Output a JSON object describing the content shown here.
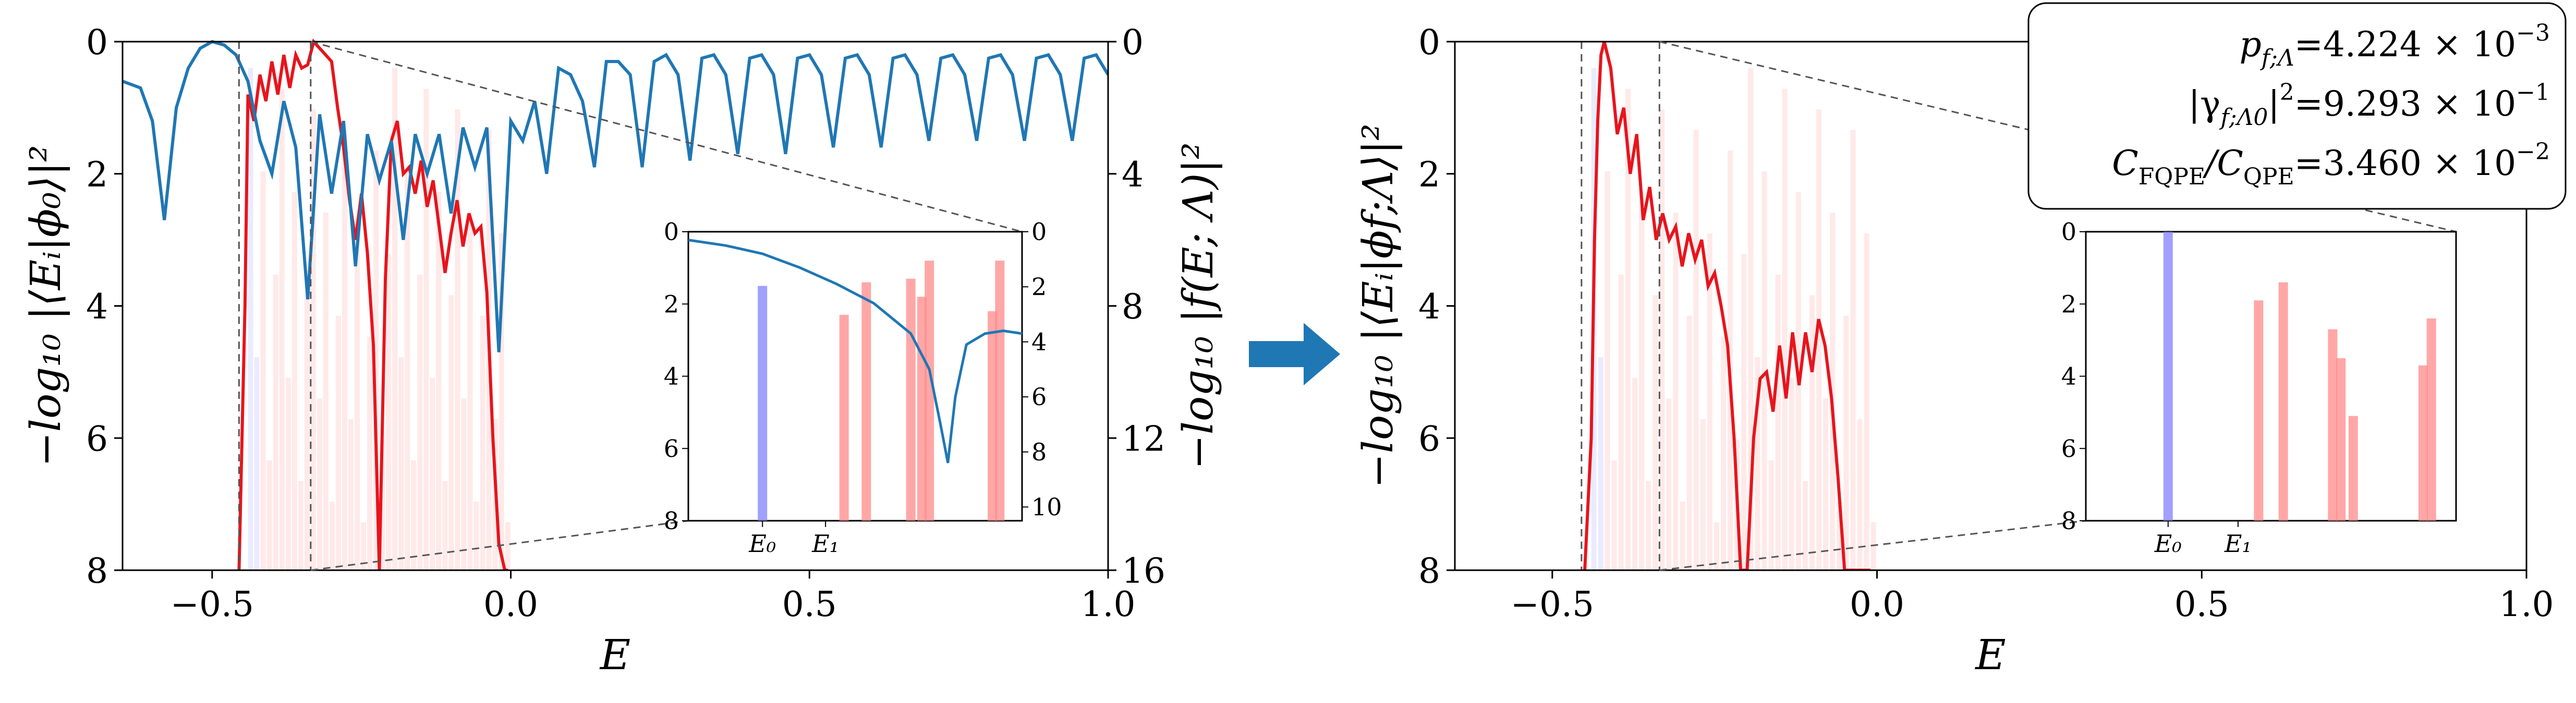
{
  "chart_data": [
    {
      "panel": "left",
      "type": "line",
      "xlabel": "E",
      "ylabel": "−log₁₀ |⟨Eᵢ|ϕ₀⟩|²",
      "ylabel_right": "−log₁₀ |f(E; Λ)|²",
      "xlim": [
        -0.65,
        1.0
      ],
      "ylim": [
        8,
        0
      ],
      "ylim_right": [
        16,
        0
      ],
      "xticks": [
        "−0.5",
        "0.0",
        "0.5",
        "1.0"
      ],
      "yticks": [
        "0",
        "2",
        "4",
        "6",
        "8"
      ],
      "yticks_right": [
        "0",
        "4",
        "8",
        "12",
        "16"
      ],
      "series": [
        {
          "color": "#e8141c",
          "axis": "left",
          "x": [
            -0.455,
            -0.445,
            -0.44,
            -0.43,
            -0.42,
            -0.41,
            -0.4,
            -0.39,
            -0.38,
            -0.37,
            -0.36,
            -0.35,
            -0.34,
            -0.33,
            -0.32,
            -0.31,
            -0.3,
            -0.29,
            -0.28,
            -0.27,
            -0.26,
            -0.25,
            -0.24,
            -0.23,
            -0.22,
            -0.21,
            -0.2,
            -0.19,
            -0.18,
            -0.17,
            -0.16,
            -0.15,
            -0.14,
            -0.13,
            -0.12,
            -0.11,
            -0.1,
            -0.09,
            -0.08,
            -0.07,
            -0.06,
            -0.05,
            -0.04,
            -0.03,
            -0.02,
            -0.01,
            -0.005
          ],
          "values": [
            8.0,
            4.0,
            0.8,
            1.2,
            0.5,
            0.9,
            0.3,
            0.8,
            0.2,
            0.7,
            0.2,
            0.4,
            0.35,
            0.0,
            0.1,
            0.2,
            0.3,
            1.0,
            1.6,
            2.4,
            3.0,
            2.3,
            3.2,
            4.6,
            8.0,
            3.6,
            1.5,
            1.2,
            2.0,
            1.9,
            2.3,
            1.8,
            2.5,
            2.1,
            2.8,
            3.5,
            2.9,
            2.4,
            3.1,
            2.6,
            2.9,
            2.8,
            3.8,
            6.0,
            7.6,
            8.0,
            8.0
          ]
        },
        {
          "color": "#1f77b4",
          "axis": "right",
          "x": [
            -0.65,
            -0.62,
            -0.6,
            -0.58,
            -0.56,
            -0.54,
            -0.52,
            -0.5,
            -0.48,
            -0.46,
            -0.44,
            -0.42,
            -0.4,
            -0.38,
            -0.36,
            -0.34,
            -0.32,
            -0.3,
            -0.28,
            -0.26,
            -0.24,
            -0.22,
            -0.2,
            -0.18,
            -0.16,
            -0.14,
            -0.12,
            -0.1,
            -0.08,
            -0.06,
            -0.04,
            -0.02,
            0.0,
            0.02,
            0.04,
            0.06,
            0.08,
            0.1,
            0.12,
            0.14,
            0.16,
            0.18,
            0.2,
            0.22,
            0.24,
            0.26,
            0.28,
            0.3,
            0.32,
            0.34,
            0.36,
            0.38,
            0.4,
            0.42,
            0.44,
            0.46,
            0.48,
            0.5,
            0.52,
            0.54,
            0.56,
            0.58,
            0.6,
            0.62,
            0.64,
            0.66,
            0.68,
            0.7,
            0.72,
            0.74,
            0.76,
            0.78,
            0.8,
            0.82,
            0.84,
            0.86,
            0.88,
            0.9,
            0.92,
            0.94,
            0.96,
            0.98,
            1.0
          ],
          "values": [
            1.2,
            1.4,
            2.4,
            5.4,
            2.0,
            0.8,
            0.2,
            0.0,
            0.1,
            0.4,
            1.2,
            3.0,
            4.0,
            1.8,
            3.2,
            7.8,
            2.2,
            4.6,
            2.4,
            6.8,
            2.8,
            4.2,
            3.0,
            6.0,
            2.8,
            4.0,
            2.8,
            5.2,
            2.6,
            3.8,
            2.6,
            9.4,
            2.4,
            3.0,
            1.8,
            4.0,
            0.8,
            1.0,
            1.8,
            3.8,
            0.6,
            0.6,
            1.0,
            3.8,
            0.6,
            0.4,
            1.0,
            3.6,
            0.5,
            0.4,
            1.0,
            3.4,
            0.5,
            0.4,
            1.0,
            3.4,
            0.5,
            0.4,
            1.0,
            3.2,
            0.5,
            0.4,
            1.0,
            3.2,
            0.5,
            0.4,
            1.0,
            3.0,
            0.5,
            0.4,
            1.0,
            3.0,
            0.5,
            0.4,
            1.0,
            3.0,
            0.5,
            0.4,
            1.0,
            3.0,
            0.5,
            0.4,
            1.0
          ]
        }
      ],
      "inset": {
        "xticks": [
          "E₀",
          "E₁"
        ],
        "yticks": [
          "0",
          "2",
          "4",
          "6",
          "8"
        ],
        "yticks_right": [
          "0",
          "2",
          "4",
          "6",
          "8",
          "10"
        ],
        "ylim": [
          8,
          0
        ],
        "ylim_right": [
          10.5,
          0
        ],
        "bars": [
          {
            "label": "E₀",
            "x": 0.0,
            "value": 1.5,
            "color": "#8080ff"
          },
          {
            "x": 0.22,
            "value": 2.3,
            "color": "#ff8a8a"
          },
          {
            "x": 0.28,
            "value": 1.4,
            "color": "#ff8a8a"
          },
          {
            "x": 0.4,
            "value": 1.3,
            "color": "#ff8a8a"
          },
          {
            "x": 0.43,
            "value": 1.8,
            "color": "#ff8a8a"
          },
          {
            "x": 0.45,
            "value": 0.8,
            "color": "#ff8a8a"
          },
          {
            "x": 0.62,
            "value": 2.2,
            "color": "#ff8a8a"
          },
          {
            "x": 0.64,
            "value": 0.8,
            "color": "#ff8a8a"
          }
        ],
        "curve": {
          "color": "#1f77b4",
          "x": [
            -0.2,
            -0.1,
            0.0,
            0.1,
            0.2,
            0.3,
            0.4,
            0.45,
            0.48,
            0.5,
            0.52,
            0.55,
            0.6,
            0.65,
            0.7
          ],
          "values": [
            0.3,
            0.5,
            0.8,
            1.3,
            1.9,
            2.6,
            3.7,
            5.0,
            7.0,
            8.4,
            6.0,
            4.1,
            3.7,
            3.6,
            3.7
          ]
        }
      }
    },
    {
      "panel": "right",
      "type": "line",
      "xlabel": "E",
      "ylabel": "−log₁₀ |⟨Eᵢ|ϕf;Λ⟩|²",
      "xlim": [
        -0.65,
        1.0
      ],
      "ylim": [
        8,
        0
      ],
      "xticks": [
        "−0.5",
        "0.0",
        "0.5",
        "1.0"
      ],
      "yticks": [
        "0",
        "2",
        "4",
        "6",
        "8"
      ],
      "series": [
        {
          "color": "#e8141c",
          "x": [
            -0.45,
            -0.44,
            -0.435,
            -0.43,
            -0.425,
            -0.42,
            -0.41,
            -0.4,
            -0.39,
            -0.38,
            -0.37,
            -0.36,
            -0.35,
            -0.34,
            -0.33,
            -0.32,
            -0.31,
            -0.3,
            -0.29,
            -0.28,
            -0.27,
            -0.26,
            -0.25,
            -0.24,
            -0.23,
            -0.22,
            -0.21,
            -0.2,
            -0.19,
            -0.18,
            -0.17,
            -0.16,
            -0.15,
            -0.14,
            -0.13,
            -0.12,
            -0.11,
            -0.1,
            -0.09,
            -0.08,
            -0.07,
            -0.06,
            -0.05,
            -0.04,
            -0.03,
            -0.02,
            -0.01
          ],
          "values": [
            8.0,
            6.0,
            3.0,
            1.2,
            0.2,
            0.0,
            0.4,
            1.4,
            1.0,
            2.0,
            1.4,
            2.7,
            2.2,
            3.0,
            2.6,
            3.0,
            2.8,
            3.4,
            2.9,
            3.3,
            3.0,
            3.7,
            3.5,
            4.0,
            4.6,
            6.0,
            8.0,
            8.0,
            6.0,
            5.1,
            5.0,
            5.6,
            4.6,
            5.4,
            4.4,
            5.2,
            4.4,
            5.0,
            4.2,
            4.6,
            5.4,
            6.6,
            8.0,
            8.0,
            8.0,
            8.0,
            8.0
          ]
        }
      ],
      "inset": {
        "xticks": [
          "E₀",
          "E₁"
        ],
        "yticks": [
          "0",
          "2",
          "4",
          "6",
          "8"
        ],
        "ylim": [
          8,
          0
        ],
        "bars": [
          {
            "label": "E₀",
            "x": 0.0,
            "value": 0.0,
            "color": "#8080ff"
          },
          {
            "x": 0.22,
            "value": 1.9,
            "color": "#ff8a8a"
          },
          {
            "x": 0.28,
            "value": 1.4,
            "color": "#ff8a8a"
          },
          {
            "x": 0.4,
            "value": 2.7,
            "color": "#ff8a8a"
          },
          {
            "x": 0.42,
            "value": 3.5,
            "color": "#ff8a8a"
          },
          {
            "x": 0.45,
            "value": 5.1,
            "color": "#ff8a8a"
          },
          {
            "x": 0.62,
            "value": 3.7,
            "color": "#ff8a8a"
          },
          {
            "x": 0.64,
            "value": 2.4,
            "color": "#ff8a8a"
          }
        ]
      },
      "annotation": {
        "lines": [
          {
            "lhs": "p_{f;Λ}",
            "rhs": "=4.224 × 10⁻³"
          },
          {
            "lhs": "|γ_{f;Λ0}|²",
            "rhs": "=9.293 × 10⁻¹"
          },
          {
            "lhs": "C_FQPE/C_QPE",
            "rhs": "=3.460 × 10⁻²"
          }
        ]
      }
    }
  ],
  "arrow": {
    "color": "#1f77b4"
  },
  "stats": {
    "p_label": "p",
    "p_sub": "f;Λ",
    "p_value": "=4.224 × 10",
    "p_exp": "−3",
    "g_label": "|γ",
    "g_sub": "f;Λ0",
    "g_close": "|",
    "g_sq": "2",
    "g_value": "=9.293 × 10",
    "g_exp": "−1",
    "c_label": "C",
    "c_sub1": "FQPE",
    "c_mid": "/C",
    "c_sub2": "QPE",
    "c_value": "=3.460 × 10",
    "c_exp": "−2"
  }
}
